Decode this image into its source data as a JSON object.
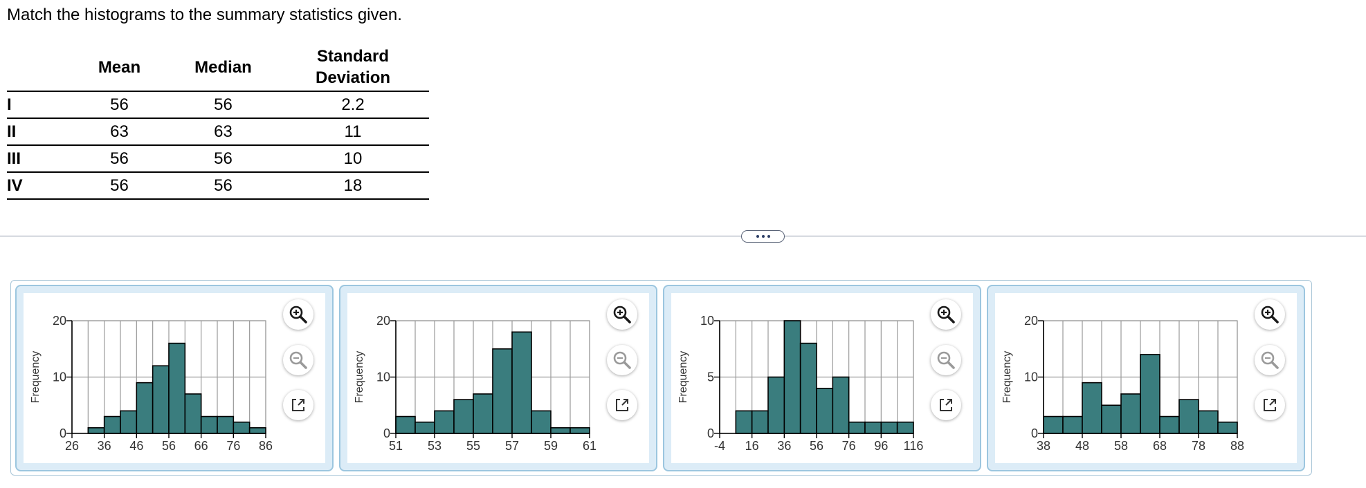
{
  "question": "Match the histograms to the summary statistics given.",
  "stats_table": {
    "headers": {
      "mean": "Mean",
      "median": "Median",
      "sd_line1": "Standard",
      "sd_line2": "Deviation"
    },
    "rows": [
      {
        "label": "I",
        "mean": "56",
        "median": "56",
        "sd": "2.2"
      },
      {
        "label": "II",
        "mean": "63",
        "median": "63",
        "sd": "11"
      },
      {
        "label": "III",
        "mean": "56",
        "median": "56",
        "sd": "10"
      },
      {
        "label": "IV",
        "mean": "56",
        "median": "56",
        "sd": "18"
      }
    ]
  },
  "icons": {
    "zoom_in": "zoom-in-icon",
    "zoom_out": "zoom-out-icon",
    "open_new": "open-in-new-window-icon",
    "expander": "more-dots-icon"
  },
  "colors": {
    "bar": "#3a7d7e",
    "panel_border": "#9cc6df",
    "panel_bg": "#dcecf7",
    "zoom_in": "#1a1a1a",
    "zoom_out": "#9a9a9a"
  },
  "chart_data": [
    {
      "type": "bar",
      "ylabel": "Frequency",
      "x_ticks": [
        "26",
        "36",
        "46",
        "56",
        "66",
        "76",
        "86"
      ],
      "y_ticks": [
        "0",
        "10",
        "20"
      ],
      "xlim": [
        26,
        86
      ],
      "ylim": [
        0,
        20
      ],
      "bin_width": 5,
      "bins_start": 31,
      "values": [
        1,
        3,
        4,
        9,
        12,
        16,
        7,
        3,
        3,
        2,
        1
      ],
      "grid": true
    },
    {
      "type": "bar",
      "ylabel": "Frequency",
      "x_ticks": [
        "51",
        "53",
        "55",
        "57",
        "59",
        "61"
      ],
      "y_ticks": [
        "0",
        "10",
        "20"
      ],
      "xlim": [
        51,
        61
      ],
      "ylim": [
        0,
        20
      ],
      "bin_width": 1,
      "bins_start": 51,
      "values": [
        3,
        2,
        4,
        6,
        7,
        15,
        18,
        4,
        1,
        1
      ],
      "grid": true
    },
    {
      "type": "bar",
      "ylabel": "Frequency",
      "x_ticks": [
        "-4",
        "16",
        "36",
        "56",
        "76",
        "96",
        "116"
      ],
      "y_ticks": [
        "0",
        "5",
        "10"
      ],
      "xlim": [
        -4,
        116
      ],
      "ylim": [
        0,
        10
      ],
      "bin_width": 10,
      "bins_start": 6,
      "values": [
        2,
        2,
        5,
        10,
        8,
        4,
        5,
        1,
        1,
        1,
        1
      ],
      "grid": true
    },
    {
      "type": "bar",
      "ylabel": "Frequency",
      "x_ticks": [
        "38",
        "48",
        "58",
        "68",
        "78",
        "88"
      ],
      "y_ticks": [
        "0",
        "10",
        "20"
      ],
      "xlim": [
        38,
        88
      ],
      "ylim": [
        0,
        20
      ],
      "bin_width": 5,
      "bins_start": 38,
      "values": [
        3,
        3,
        9,
        5,
        7,
        14,
        3,
        6,
        4,
        2
      ],
      "grid": true
    }
  ]
}
